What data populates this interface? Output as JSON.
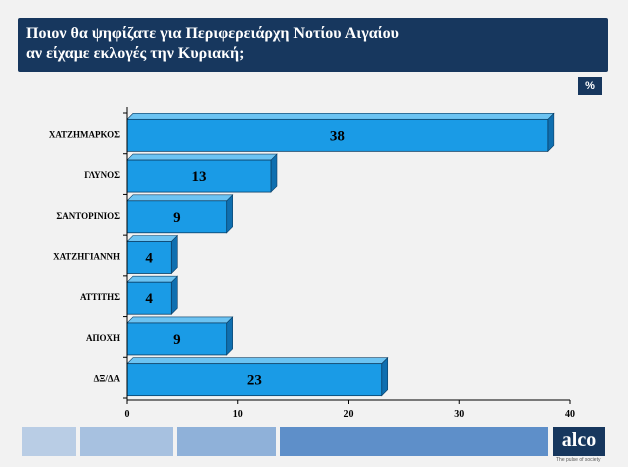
{
  "header": {
    "title_line1": "Ποιον θα ψηφίζατε για Περιφερειάρχη Νοτίου Αιγαίου",
    "title_line2": "αν είχαμε εκλογές την Κυριακή;"
  },
  "unit_badge": "%",
  "chart_data": {
    "type": "bar",
    "orientation": "horizontal",
    "categories": [
      "ΧΑΤΖΗΜΑΡΚΟΣ",
      "ΓΛΥΝΟΣ",
      "ΣΑΝΤΟΡΙΝΙΟΣ",
      "ΧΑΤΖΗΓΙΑΝΝΗ",
      "ΑΤΤΙΤΗΣ",
      "ΑΠΟΧΗ",
      "ΔΞ/ΔΑ"
    ],
    "values": [
      38,
      13,
      9,
      4,
      4,
      9,
      23
    ],
    "xlim": [
      0,
      40
    ],
    "xticks": [
      0,
      10,
      20,
      30,
      40
    ],
    "grid": false,
    "bar_color": "#1a9be6",
    "value_labels": true
  },
  "footer": {
    "logo_text": "alco",
    "logo_tagline": "The pulse of society"
  }
}
